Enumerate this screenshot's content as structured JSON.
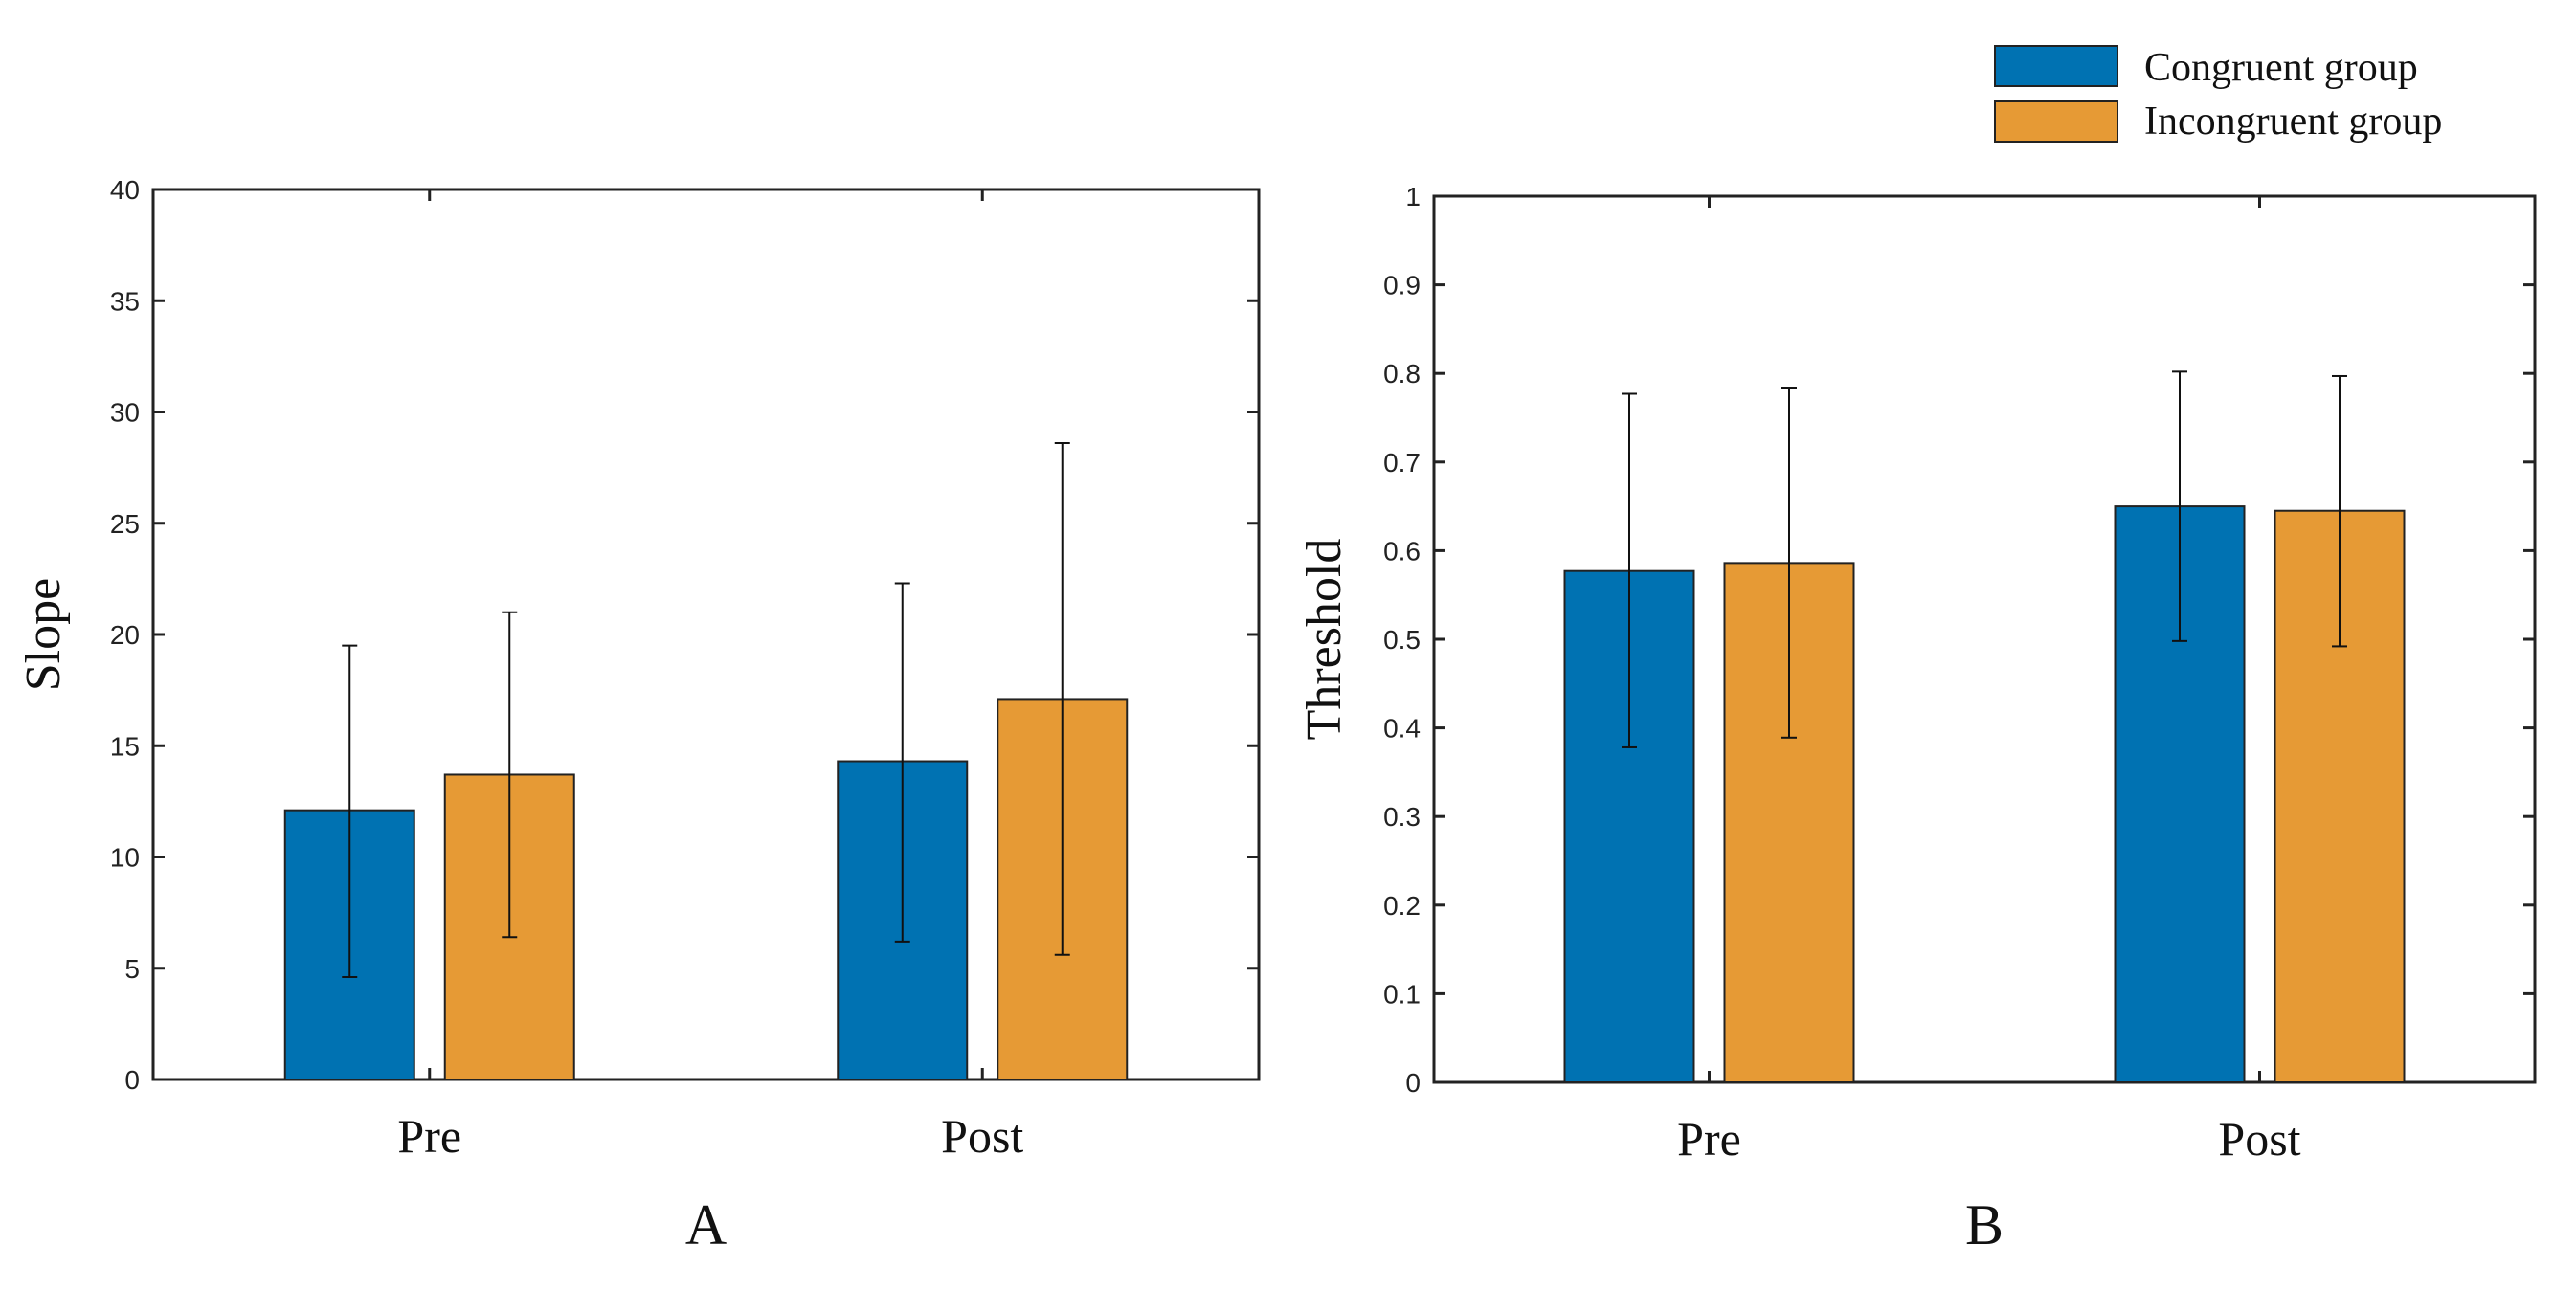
{
  "legend": [
    {
      "name": "Congruent group",
      "color": "#0072B2"
    },
    {
      "name": "Incongruent group",
      "color": "#E69A35"
    }
  ],
  "chart_data": [
    {
      "type": "bar",
      "panel_label": "A",
      "categories": [
        "Pre",
        "Post"
      ],
      "ylabel": "Slope",
      "xlabel": "",
      "ylim": [
        0,
        40
      ],
      "yticks": [
        0,
        5,
        10,
        15,
        20,
        25,
        30,
        35,
        40
      ],
      "series": [
        {
          "name": "Congruent group",
          "color": "#0072B2",
          "values": [
            12.1,
            14.3
          ],
          "error_low": [
            4.6,
            6.2
          ],
          "error_high": [
            19.5,
            22.3
          ]
        },
        {
          "name": "Incongruent group",
          "color": "#E69A35",
          "values": [
            13.7,
            17.1
          ],
          "error_low": [
            6.4,
            5.6
          ],
          "error_high": [
            21.0,
            28.6
          ]
        }
      ]
    },
    {
      "type": "bar",
      "panel_label": "B",
      "categories": [
        "Pre",
        "Post"
      ],
      "ylabel": "Threshold",
      "xlabel": "",
      "ylim": [
        0,
        1
      ],
      "yticks": [
        0,
        0.1,
        0.2,
        0.3,
        0.4,
        0.5,
        0.6,
        0.7,
        0.8,
        0.9,
        1
      ],
      "series": [
        {
          "name": "Congruent group",
          "color": "#0072B2",
          "values": [
            0.577,
            0.65
          ],
          "error_low": [
            0.378,
            0.498
          ],
          "error_high": [
            0.777,
            0.802
          ]
        },
        {
          "name": "Incongruent group",
          "color": "#E69A35",
          "values": [
            0.586,
            0.645
          ],
          "error_low": [
            0.389,
            0.492
          ],
          "error_high": [
            0.784,
            0.797
          ]
        }
      ]
    }
  ]
}
